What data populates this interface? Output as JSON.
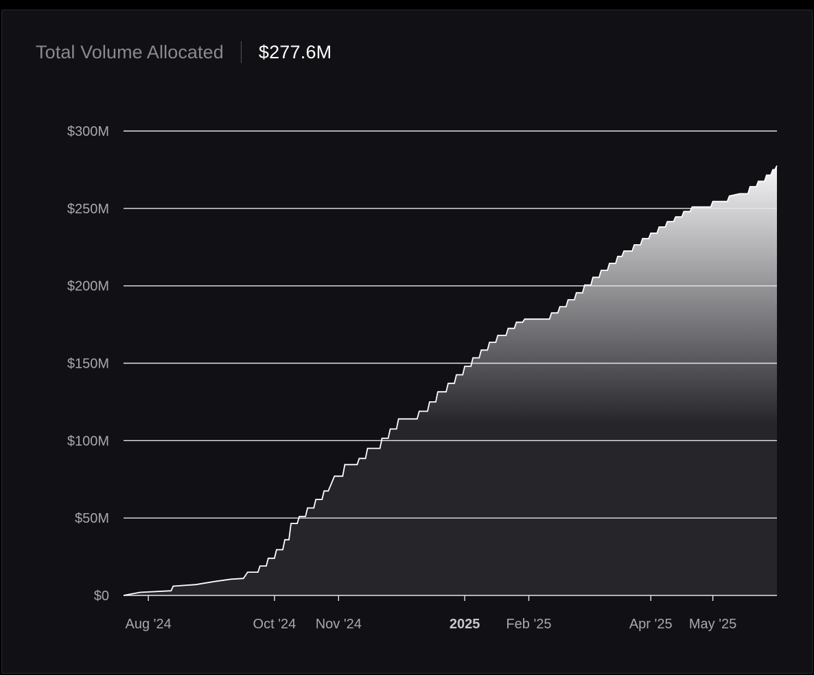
{
  "header": {
    "label": "Total Volume Allocated",
    "value": "$277.6M"
  },
  "colors": {
    "background": "#111014",
    "line": "#ffffff",
    "grid": "#e6e6e6",
    "area_top": "#f5f5f7",
    "area_bottom": "#26252a"
  },
  "chart_data": {
    "type": "area",
    "title": "",
    "xlabel": "",
    "ylabel": "",
    "ylim": [
      0,
      300
    ],
    "y_unit": "millions USD",
    "yticks": [
      {
        "value": 0,
        "label": "$0"
      },
      {
        "value": 50,
        "label": "$50M"
      },
      {
        "value": 100,
        "label": "$100M"
      },
      {
        "value": 150,
        "label": "$150M"
      },
      {
        "value": 200,
        "label": "$200M"
      },
      {
        "value": 250,
        "label": "$250M"
      },
      {
        "value": 300,
        "label": "$300M"
      }
    ],
    "xlim": [
      "2024-07-20",
      "2025-06-01"
    ],
    "xticks": [
      {
        "date": "2024-08-01",
        "label": "Aug '24",
        "bold": false
      },
      {
        "date": "2024-10-01",
        "label": "Oct '24",
        "bold": false
      },
      {
        "date": "2024-11-01",
        "label": "Nov '24",
        "bold": false
      },
      {
        "date": "2025-01-01",
        "label": "2025",
        "bold": true
      },
      {
        "date": "2025-02-01",
        "label": "Feb '25",
        "bold": false
      },
      {
        "date": "2025-04-01",
        "label": "Apr '25",
        "bold": false
      },
      {
        "date": "2025-05-01",
        "label": "May '25",
        "bold": false
      }
    ],
    "grid": true,
    "series": [
      {
        "points": [
          [
            "2024-07-20",
            0
          ],
          [
            "2024-07-28",
            2
          ],
          [
            "2024-08-12",
            3
          ],
          [
            "2024-08-13",
            6
          ],
          [
            "2024-08-24",
            7
          ],
          [
            "2024-09-02",
            9
          ],
          [
            "2024-09-10",
            10.5
          ],
          [
            "2024-09-16",
            11
          ],
          [
            "2024-09-18",
            15
          ],
          [
            "2024-09-23",
            15
          ],
          [
            "2024-09-24",
            19
          ],
          [
            "2024-09-27",
            19
          ],
          [
            "2024-09-28",
            24
          ],
          [
            "2024-10-01",
            24
          ],
          [
            "2024-10-02",
            29.5
          ],
          [
            "2024-10-05",
            29.5
          ],
          [
            "2024-10-06",
            36
          ],
          [
            "2024-10-08",
            36
          ],
          [
            "2024-10-09",
            46.5
          ],
          [
            "2024-10-12",
            46.5
          ],
          [
            "2024-10-13",
            51
          ],
          [
            "2024-10-16",
            51
          ],
          [
            "2024-10-17",
            56.5
          ],
          [
            "2024-10-20",
            56.5
          ],
          [
            "2024-10-21",
            62
          ],
          [
            "2024-10-24",
            62
          ],
          [
            "2024-10-25",
            67.5
          ],
          [
            "2024-10-27",
            67.5
          ],
          [
            "2024-10-30",
            77
          ],
          [
            "2024-11-03",
            77
          ],
          [
            "2024-11-04",
            84.5
          ],
          [
            "2024-11-10",
            84.5
          ],
          [
            "2024-11-11",
            88.5
          ],
          [
            "2024-11-14",
            88.5
          ],
          [
            "2024-11-15",
            95
          ],
          [
            "2024-11-21",
            95
          ],
          [
            "2024-11-22",
            101.5
          ],
          [
            "2024-11-25",
            101.5
          ],
          [
            "2024-11-26",
            107.5
          ],
          [
            "2024-11-29",
            107.5
          ],
          [
            "2024-11-30",
            114
          ],
          [
            "2024-12-09",
            114
          ],
          [
            "2024-12-10",
            119
          ],
          [
            "2024-12-14",
            119
          ],
          [
            "2024-12-15",
            125
          ],
          [
            "2024-12-18",
            125
          ],
          [
            "2024-12-19",
            131.5
          ],
          [
            "2024-12-23",
            131.5
          ],
          [
            "2024-12-24",
            137
          ],
          [
            "2024-12-27",
            137
          ],
          [
            "2024-12-28",
            142.5
          ],
          [
            "2024-12-31",
            142.5
          ],
          [
            "2025-01-01",
            148
          ],
          [
            "2025-01-04",
            148
          ],
          [
            "2025-01-05",
            153.5
          ],
          [
            "2025-01-08",
            153.5
          ],
          [
            "2025-01-09",
            158.5
          ],
          [
            "2025-01-12",
            158.5
          ],
          [
            "2025-01-13",
            163.5
          ],
          [
            "2025-01-16",
            163.5
          ],
          [
            "2025-01-17",
            168
          ],
          [
            "2025-01-21",
            168
          ],
          [
            "2025-01-22",
            172.5
          ],
          [
            "2025-01-25",
            172.5
          ],
          [
            "2025-01-26",
            176.5
          ],
          [
            "2025-01-29",
            176.5
          ],
          [
            "2025-01-30",
            178.5
          ],
          [
            "2025-02-11",
            178.5
          ],
          [
            "2025-02-12",
            182.5
          ],
          [
            "2025-02-15",
            182.5
          ],
          [
            "2025-02-16",
            186.5
          ],
          [
            "2025-02-19",
            186.5
          ],
          [
            "2025-02-20",
            191
          ],
          [
            "2025-02-23",
            191
          ],
          [
            "2025-02-24",
            195.5
          ],
          [
            "2025-02-27",
            195.5
          ],
          [
            "2025-02-28",
            200.5
          ],
          [
            "2025-03-03",
            200.5
          ],
          [
            "2025-03-04",
            205.5
          ],
          [
            "2025-03-07",
            205.5
          ],
          [
            "2025-03-08",
            210
          ],
          [
            "2025-03-11",
            210
          ],
          [
            "2025-03-12",
            214.5
          ],
          [
            "2025-03-15",
            214.5
          ],
          [
            "2025-03-16",
            219
          ],
          [
            "2025-03-18",
            219
          ],
          [
            "2025-03-19",
            222.5
          ],
          [
            "2025-03-23",
            222.5
          ],
          [
            "2025-03-24",
            226.5
          ],
          [
            "2025-03-27",
            226.5
          ],
          [
            "2025-03-28",
            230.5
          ],
          [
            "2025-03-31",
            230.5
          ],
          [
            "2025-04-01",
            234
          ],
          [
            "2025-04-04",
            234
          ],
          [
            "2025-04-05",
            238
          ],
          [
            "2025-04-08",
            238
          ],
          [
            "2025-04-09",
            241.5
          ],
          [
            "2025-04-12",
            241.5
          ],
          [
            "2025-04-13",
            244.5
          ],
          [
            "2025-04-16",
            244.5
          ],
          [
            "2025-04-17",
            248
          ],
          [
            "2025-04-20",
            248
          ],
          [
            "2025-04-21",
            251
          ],
          [
            "2025-04-30",
            251
          ],
          [
            "2025-05-01",
            254.5
          ],
          [
            "2025-05-08",
            254.5
          ],
          [
            "2025-05-09",
            258
          ],
          [
            "2025-05-14",
            259.5
          ],
          [
            "2025-05-18",
            259.5
          ],
          [
            "2025-05-19",
            264
          ],
          [
            "2025-05-22",
            264
          ],
          [
            "2025-05-23",
            267.5
          ],
          [
            "2025-05-26",
            267.5
          ],
          [
            "2025-05-27",
            271.5
          ],
          [
            "2025-05-29",
            271.5
          ],
          [
            "2025-05-30",
            275
          ],
          [
            "2025-05-31",
            275
          ],
          [
            "2025-06-01",
            277.6
          ]
        ]
      }
    ]
  }
}
